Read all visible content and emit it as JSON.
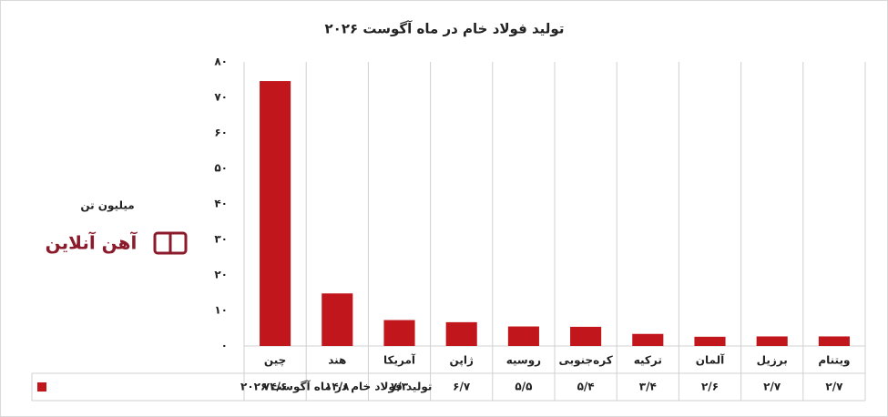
{
  "chart_data": {
    "type": "bar",
    "title": "تولید فولاد خام  در ماه آگوست ۲۰۲۶",
    "y_label": "میلیون تن",
    "logo": "آهن آنلاین",
    "categories": [
      "چین",
      "هند",
      "آمریکا",
      "ژاپن",
      "روسیه",
      "کره‌جنوبی",
      "ترکیه",
      "آلمان",
      "برزیل",
      "ویتنام"
    ],
    "series": [
      {
        "name": "تولید فولاد خام  در ماه آگوست ۲۰۲۶",
        "color": "#c0161c",
        "values": [
          74.6,
          14.8,
          7.3,
          6.7,
          5.5,
          5.4,
          3.4,
          2.6,
          2.7,
          2.7
        ],
        "value_labels": [
          "۷۴/۶",
          "۱۴/۸",
          "۷/۳",
          "۶/۷",
          "۵/۵",
          "۵/۴",
          "۳/۴",
          "۲/۶",
          "۲/۷",
          "۲/۷"
        ]
      }
    ],
    "ylim": [
      0,
      80
    ],
    "yticks": [
      {
        "value": 0,
        "label": "۰"
      },
      {
        "value": 10,
        "label": "۱۰"
      },
      {
        "value": 20,
        "label": "۲۰"
      },
      {
        "value": 30,
        "label": "۳۰"
      },
      {
        "value": 40,
        "label": "۴۰"
      },
      {
        "value": 50,
        "label": "۵۰"
      },
      {
        "value": 60,
        "label": "۶۰"
      },
      {
        "value": 70,
        "label": "۷۰"
      },
      {
        "value": 80,
        "label": "۸۰"
      }
    ]
  }
}
